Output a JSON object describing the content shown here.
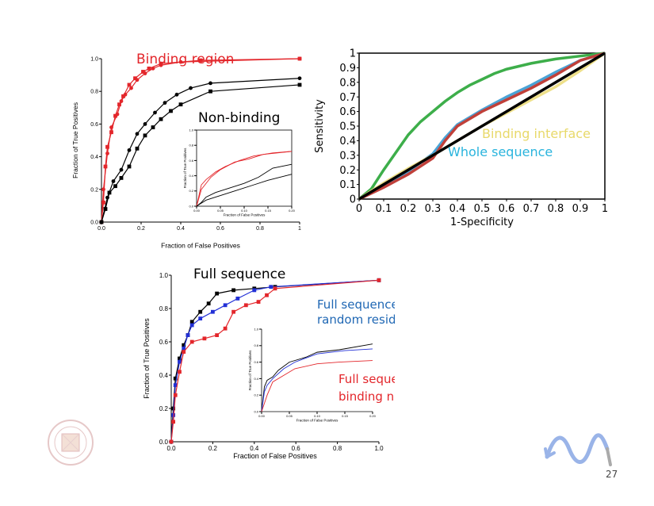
{
  "colors": {
    "bar_top": "#0b4ff5",
    "bar_mid": "#7b7faf",
    "bar_bottom": "#000000",
    "red": "#e3262b",
    "black": "#000000",
    "blue": "#2230d6",
    "green": "#3dae4a",
    "roc_blue": "#4aa3d6",
    "roc_red": "#c0403a",
    "roc_yellow": "#eee08a",
    "anno_blue": "#1f67b4",
    "anno_cyan": "#2ab4dd",
    "anno_yellow": "#e8d96a"
  },
  "icons": {
    "seal": "university-seal-icon",
    "logo": "wave-arrow-logo-icon"
  },
  "page_number": "27",
  "chart_data": [
    {
      "type": "line",
      "id": "top-left",
      "xlabel": "Fraction of False Positives",
      "ylabel": "Fraction of True Positives",
      "xlim": [
        0,
        1
      ],
      "ylim": [
        0,
        1
      ],
      "xticks": [
        "0.0",
        "0.2",
        "0.4",
        "0.6",
        "0.8",
        "1"
      ],
      "yticks": [
        "0.0",
        "0.2",
        "0.4",
        "0.6",
        "0.8",
        "1.0"
      ],
      "annotations": [
        "Binding region",
        "Non-binding"
      ],
      "series": [
        {
          "color": "red",
          "marker": "square",
          "x": [
            0,
            0.01,
            0.02,
            0.03,
            0.05,
            0.07,
            0.09,
            0.11,
            0.14,
            0.17,
            0.21,
            0.24,
            0.3,
            0.5,
            1.0
          ],
          "y": [
            0,
            0.12,
            0.34,
            0.46,
            0.55,
            0.65,
            0.72,
            0.77,
            0.84,
            0.88,
            0.92,
            0.94,
            0.97,
            0.99,
            1.0
          ]
        },
        {
          "color": "red",
          "marker": "circle",
          "x": [
            0,
            0.01,
            0.03,
            0.05,
            0.08,
            0.1,
            0.12,
            0.15,
            0.18,
            0.22,
            0.26,
            0.3,
            0.4,
            1.0
          ],
          "y": [
            0,
            0.2,
            0.42,
            0.58,
            0.66,
            0.74,
            0.78,
            0.82,
            0.87,
            0.91,
            0.94,
            0.96,
            0.98,
            1.0
          ]
        },
        {
          "color": "black",
          "marker": "square",
          "x": [
            0,
            0.02,
            0.04,
            0.07,
            0.1,
            0.14,
            0.18,
            0.22,
            0.26,
            0.3,
            0.35,
            0.4,
            0.55,
            1.0
          ],
          "y": [
            0,
            0.08,
            0.18,
            0.22,
            0.27,
            0.34,
            0.45,
            0.53,
            0.58,
            0.63,
            0.68,
            0.72,
            0.8,
            0.84
          ]
        },
        {
          "color": "black",
          "marker": "circle",
          "x": [
            0,
            0.03,
            0.06,
            0.1,
            0.14,
            0.18,
            0.22,
            0.27,
            0.32,
            0.38,
            0.45,
            0.55,
            1.0
          ],
          "y": [
            0,
            0.15,
            0.25,
            0.32,
            0.44,
            0.54,
            0.6,
            0.67,
            0.73,
            0.78,
            0.82,
            0.85,
            0.88
          ]
        }
      ],
      "inset": {
        "xticks": [
          "0.00",
          "0.05",
          "0.10",
          "0.15",
          "0.20"
        ],
        "yticks": [
          "0.0",
          "0.2",
          "0.4",
          "0.6",
          "0.8",
          "1.0"
        ],
        "xlim": [
          0,
          0.2
        ],
        "ylim": [
          0,
          1
        ],
        "xlabel": "Fraction of False Positives",
        "ylabel": "Fraction of True Positives",
        "series": [
          {
            "color": "red",
            "x": [
              0,
              0.01,
              0.02,
              0.04,
              0.06,
              0.09,
              0.12,
              0.16,
              0.2
            ],
            "y": [
              0,
              0.28,
              0.35,
              0.45,
              0.52,
              0.6,
              0.66,
              0.7,
              0.72
            ]
          },
          {
            "color": "red",
            "x": [
              0,
              0.01,
              0.03,
              0.05,
              0.08,
              0.11,
              0.14,
              0.2
            ],
            "y": [
              0,
              0.22,
              0.38,
              0.48,
              0.58,
              0.62,
              0.68,
              0.72
            ]
          },
          {
            "color": "black",
            "x": [
              0,
              0.01,
              0.02,
              0.04,
              0.07,
              0.1,
              0.13,
              0.16,
              0.2
            ],
            "y": [
              0,
              0.05,
              0.12,
              0.18,
              0.24,
              0.3,
              0.38,
              0.5,
              0.55
            ]
          },
          {
            "color": "black",
            "x": [
              0,
              0.02,
              0.05,
              0.08,
              0.12,
              0.15,
              0.2
            ],
            "y": [
              0,
              0.08,
              0.14,
              0.2,
              0.28,
              0.34,
              0.42
            ]
          }
        ]
      }
    },
    {
      "type": "line",
      "id": "top-right",
      "xlabel": "1-Specificity",
      "ylabel": "Sensitivity",
      "xlim": [
        0,
        1
      ],
      "ylim": [
        0,
        1
      ],
      "xticks": [
        "0",
        "0.1",
        "0.2",
        "0.3",
        "0.4",
        "0.5",
        "0.6",
        "0.7",
        "0.8",
        "0.9",
        "1"
      ],
      "yticks": [
        "0",
        "0.1",
        "0.2",
        "0.3",
        "0.4",
        "0.5",
        "0.6",
        "0.7",
        "0.8",
        "0.9",
        "1"
      ],
      "annotations": [
        "Binding interface",
        "Whole sequence"
      ],
      "series": [
        {
          "color": "green",
          "x": [
            0,
            0.05,
            0.1,
            0.15,
            0.2,
            0.25,
            0.3,
            0.35,
            0.4,
            0.45,
            0.5,
            0.55,
            0.6,
            0.7,
            0.8,
            0.9,
            1.0
          ],
          "y": [
            0,
            0.07,
            0.2,
            0.32,
            0.44,
            0.53,
            0.6,
            0.67,
            0.73,
            0.78,
            0.82,
            0.86,
            0.89,
            0.93,
            0.96,
            0.98,
            1.0
          ]
        },
        {
          "color": "roc_blue",
          "x": [
            0,
            0.1,
            0.2,
            0.3,
            0.35,
            0.4,
            0.5,
            0.6,
            0.7,
            0.8,
            0.9,
            1.0
          ],
          "y": [
            0,
            0.09,
            0.19,
            0.31,
            0.42,
            0.51,
            0.61,
            0.7,
            0.78,
            0.87,
            0.95,
            1.0
          ]
        },
        {
          "color": "roc_red",
          "x": [
            0,
            0.1,
            0.2,
            0.3,
            0.35,
            0.4,
            0.5,
            0.6,
            0.7,
            0.8,
            0.9,
            1.0
          ],
          "y": [
            0,
            0.08,
            0.17,
            0.28,
            0.4,
            0.5,
            0.6,
            0.68,
            0.76,
            0.85,
            0.95,
            1.0
          ]
        },
        {
          "color": "roc_yellow",
          "x": [
            0,
            0.1,
            0.2,
            0.3,
            0.4,
            0.5,
            0.6,
            0.7,
            0.8,
            0.9,
            1.0
          ],
          "y": [
            0,
            0.11,
            0.21,
            0.3,
            0.4,
            0.5,
            0.59,
            0.68,
            0.77,
            0.88,
            1.0
          ]
        },
        {
          "color": "black",
          "x": [
            0,
            1
          ],
          "y": [
            0,
            1
          ]
        }
      ]
    },
    {
      "type": "line",
      "id": "bottom",
      "xlabel": "Fraction of False Positives",
      "ylabel": "Fraction of True Positives",
      "xlim": [
        0,
        1
      ],
      "ylim": [
        0,
        1
      ],
      "xticks": [
        "0.0",
        "0.2",
        "0.4",
        "0.6",
        "0.8",
        "1.0"
      ],
      "yticks": [
        "0.0",
        "0.2",
        "0.4",
        "0.6",
        "0.8",
        "1.0"
      ],
      "annotations": [
        "Full sequence",
        "Full sequence without\nrandom residues",
        "Full sequence without the\nbinding neighborhood"
      ],
      "series": [
        {
          "color": "black",
          "x": [
            0,
            0.01,
            0.02,
            0.04,
            0.06,
            0.08,
            0.1,
            0.14,
            0.18,
            0.22,
            0.3,
            0.4,
            0.5,
            1.0
          ],
          "y": [
            0,
            0.2,
            0.38,
            0.5,
            0.58,
            0.64,
            0.72,
            0.78,
            0.83,
            0.89,
            0.91,
            0.92,
            0.93,
            0.97
          ]
        },
        {
          "color": "blue",
          "x": [
            0,
            0.01,
            0.02,
            0.04,
            0.06,
            0.08,
            0.1,
            0.14,
            0.2,
            0.26,
            0.32,
            0.4,
            0.48,
            1.0
          ],
          "y": [
            0,
            0.16,
            0.34,
            0.48,
            0.56,
            0.64,
            0.7,
            0.74,
            0.78,
            0.82,
            0.86,
            0.91,
            0.93,
            0.97
          ]
        },
        {
          "color": "red",
          "x": [
            0,
            0.01,
            0.02,
            0.04,
            0.06,
            0.1,
            0.16,
            0.22,
            0.26,
            0.3,
            0.36,
            0.42,
            0.46,
            0.5,
            1.0
          ],
          "y": [
            0,
            0.12,
            0.28,
            0.42,
            0.54,
            0.6,
            0.62,
            0.64,
            0.68,
            0.78,
            0.82,
            0.84,
            0.88,
            0.92,
            0.97
          ]
        }
      ],
      "inset": {
        "xticks": [
          "0.00",
          "0.05",
          "0.10",
          "0.15",
          "0.20"
        ],
        "yticks": [
          "0.0",
          "0.2",
          "0.4",
          "0.6",
          "0.8",
          "1.0"
        ],
        "xlim": [
          0,
          0.2
        ],
        "ylim": [
          0,
          1
        ],
        "xlabel": "Fraction of False Positives",
        "ylabel": "Fraction of True Positives",
        "series": [
          {
            "color": "black",
            "x": [
              0,
              0.005,
              0.01,
              0.02,
              0.03,
              0.05,
              0.08,
              0.1,
              0.14,
              0.2
            ],
            "y": [
              0,
              0.3,
              0.38,
              0.42,
              0.5,
              0.6,
              0.66,
              0.72,
              0.75,
              0.82
            ]
          },
          {
            "color": "blue",
            "x": [
              0,
              0.005,
              0.01,
              0.02,
              0.04,
              0.06,
              0.1,
              0.15,
              0.2
            ],
            "y": [
              0,
              0.24,
              0.32,
              0.4,
              0.52,
              0.6,
              0.7,
              0.74,
              0.76
            ]
          },
          {
            "color": "red",
            "x": [
              0,
              0.005,
              0.01,
              0.02,
              0.04,
              0.06,
              0.1,
              0.14,
              0.2
            ],
            "y": [
              0,
              0.1,
              0.2,
              0.36,
              0.44,
              0.52,
              0.58,
              0.6,
              0.62
            ]
          }
        ]
      }
    }
  ]
}
